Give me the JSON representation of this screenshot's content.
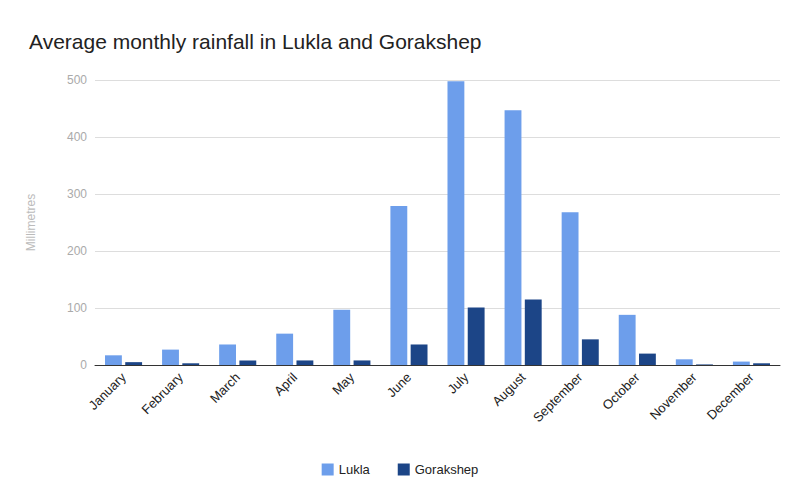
{
  "chart_data": {
    "type": "bar",
    "title": "Average monthly rainfall in Lukla and Gorakshep",
    "y_label": "Millimetres",
    "categories": [
      "January",
      "February",
      "March",
      "April",
      "May",
      "June",
      "July",
      "August",
      "September",
      "October",
      "November",
      "December"
    ],
    "series": [
      {
        "name": "Lukla",
        "color": "#6d9eeb",
        "values": [
          17,
          27,
          36,
          55,
          97,
          279,
          498,
          447,
          268,
          88,
          10,
          6
        ]
      },
      {
        "name": "Gorakshep",
        "color": "#1c4587",
        "values": [
          5,
          3,
          8,
          8,
          8,
          36,
          101,
          115,
          45,
          20,
          1,
          3
        ]
      }
    ],
    "ylim": [
      0,
      500
    ],
    "yticks": [
      0,
      100,
      200,
      300,
      400,
      500
    ],
    "grid": true,
    "legend": "bottom"
  }
}
